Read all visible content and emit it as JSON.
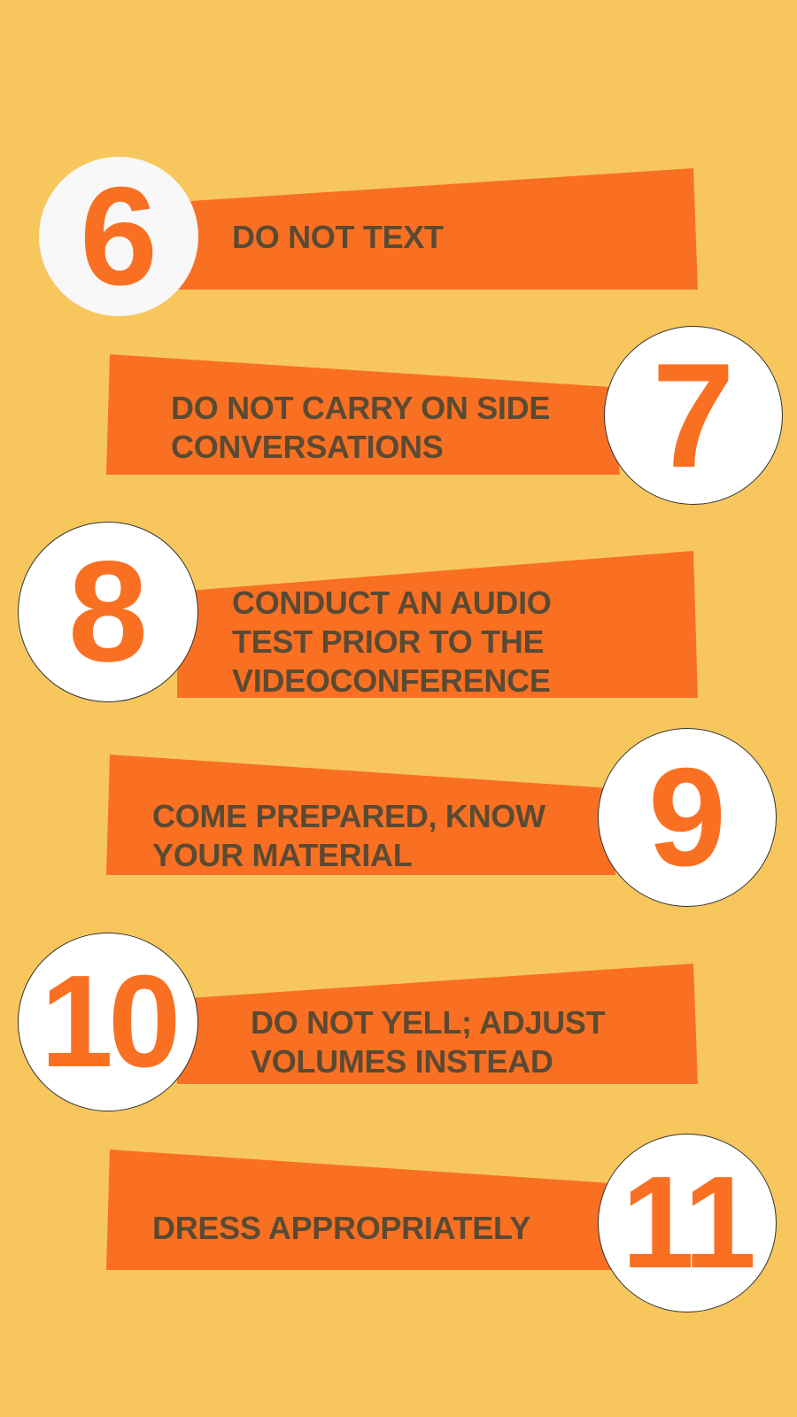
{
  "colors": {
    "background": "#f7c75e",
    "banner": "#f97022",
    "text": "#5b4a33",
    "number": "#f97022",
    "circle": "#ffffff"
  },
  "tips": [
    {
      "number": "6",
      "text": "DO NOT TEXT"
    },
    {
      "number": "7",
      "text": "DO NOT CARRY ON SIDE\nCONVERSATIONS"
    },
    {
      "number": "8",
      "text": "CONDUCT AN AUDIO\nTEST PRIOR TO THE\nVIDEOCONFERENCE"
    },
    {
      "number": "9",
      "text": "COME PREPARED, KNOW\nYOUR MATERIAL"
    },
    {
      "number": "10",
      "text": "DO NOT YELL; ADJUST\nVOLUMES INSTEAD"
    },
    {
      "number": "11",
      "text": "DRESS APPROPRIATELY"
    }
  ]
}
